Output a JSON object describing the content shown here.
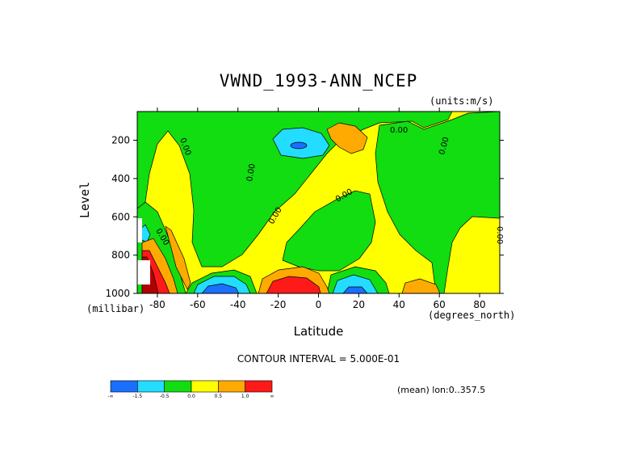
{
  "chart_data": {
    "type": "heatmap",
    "title": "VWND_1993-ANN_NCEP",
    "units_label": "(units:m/s)",
    "xlabel": "Latitude",
    "ylabel": "Level",
    "x_units_label": "(degrees_north)",
    "y_units_label": "(millibar)",
    "xlim": [
      -90,
      90
    ],
    "ylim": [
      1000,
      50
    ],
    "x_ticks": [
      -80,
      -60,
      -40,
      -20,
      0,
      20,
      40,
      60,
      80
    ],
    "x_tick_labels": [
      "-80",
      "-60",
      "-40",
      "-20",
      "0",
      "20",
      "40",
      "60",
      "80"
    ],
    "y_ticks": [
      200,
      400,
      600,
      800,
      1000
    ],
    "y_tick_labels": [
      "200",
      "400",
      "600",
      "800",
      "1000"
    ],
    "contour_interval_text": "CONTOUR INTERVAL = 5.000E-01",
    "contour_labels": [
      "0.00",
      "0.00",
      "0.00",
      "0.00",
      "0.00",
      "0.00",
      "0.00",
      "0.00"
    ],
    "mean_text": "(mean) lon:0..357.5",
    "colorbar": {
      "colors": [
        "#1a6fff",
        "#22ddff",
        "#11dd11",
        "#ffff00",
        "#ffaa00",
        "#ff1a1a"
      ],
      "labels": [
        "-∞",
        "-1.5",
        "-0.5",
        "0.0",
        "0.5",
        "1.0",
        "∞"
      ],
      "bounds": [
        null,
        -1.5,
        -0.5,
        0.0,
        0.5,
        1.0,
        null
      ]
    },
    "grid": false,
    "legend": "bottom-left"
  }
}
